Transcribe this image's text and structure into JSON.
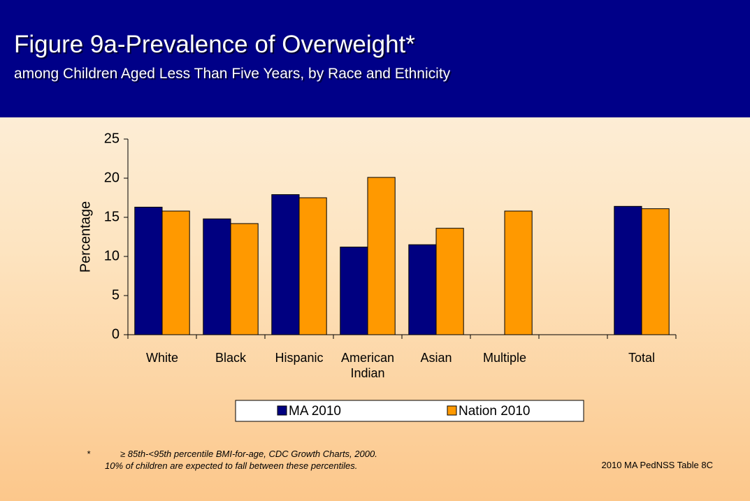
{
  "chart_data": {
    "type": "bar",
    "title": "Figure 9a-Prevalence of Overweight*",
    "subtitle": "among Children Aged Less Than Five Years, by Race and Ethnicity",
    "y_label": "Percentage",
    "categories": [
      "White",
      "Black",
      "Hispanic",
      "American Indian",
      "Asian",
      "Multiple",
      null,
      "Total"
    ],
    "series": [
      {
        "name": "MA 2010",
        "color": "#000080",
        "values": [
          16.3,
          14.8,
          17.9,
          11.2,
          11.5,
          null,
          null,
          16.4
        ]
      },
      {
        "name": "Nation 2010",
        "color": "#ff9900",
        "values": [
          15.8,
          14.2,
          17.5,
          20.1,
          13.6,
          15.8,
          null,
          16.1
        ]
      }
    ],
    "ylim": [
      0,
      25
    ],
    "yticks": [
      0,
      5,
      10,
      15,
      20,
      25
    ],
    "grid": false,
    "legend": "bottom",
    "footnote": {
      "marker": "*",
      "lines": [
        "≥ 85th-<95th percentile BMI-for-age, CDC Growth Charts, 2000.",
        "10% of children are expected to fall between these percentiles."
      ]
    },
    "source": "2010 MA PedNSS Table 8C"
  }
}
